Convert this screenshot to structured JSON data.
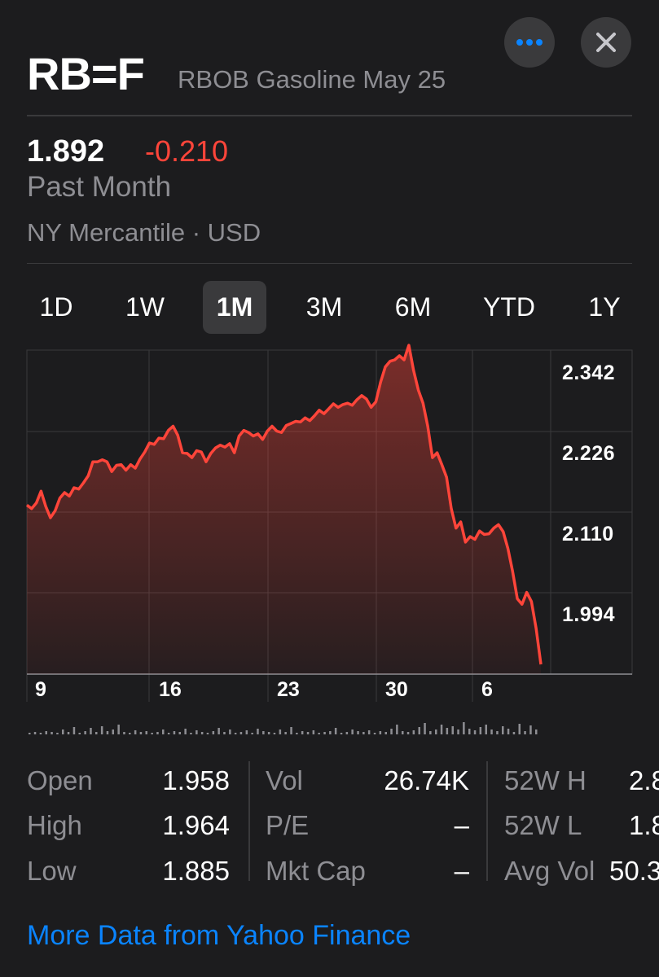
{
  "header": {
    "symbol": "RB=F",
    "name": "RBOB Gasoline May 25",
    "more_icon": "ellipsis-icon",
    "close_icon": "close-icon"
  },
  "quote": {
    "price": "1.892",
    "change": "-0.210",
    "period": "Past Month",
    "exchange": "NY Mercantile · USD"
  },
  "tabs": [
    {
      "label": "1D"
    },
    {
      "label": "1W"
    },
    {
      "label": "1M",
      "active": true
    },
    {
      "label": "3M"
    },
    {
      "label": "6M"
    },
    {
      "label": "YTD"
    },
    {
      "label": "1Y"
    }
  ],
  "chart_data": {
    "type": "area",
    "y_ticks": [
      "2.342",
      "2.226",
      "2.110",
      "1.994"
    ],
    "x_ticks": [
      "9",
      "16",
      "23",
      "30",
      "6"
    ],
    "ylim": [
      1.878,
      2.342
    ],
    "line_color": "#ff453a",
    "series": [
      {
        "values": [
          2.12,
          2.115,
          2.123,
          2.14,
          2.118,
          2.102,
          2.112,
          2.13,
          2.138,
          2.133,
          2.145,
          2.143,
          2.152,
          2.162,
          2.182,
          2.182,
          2.185,
          2.182,
          2.168,
          2.177,
          2.178,
          2.17,
          2.178,
          2.173,
          2.186,
          2.196,
          2.209,
          2.207,
          2.216,
          2.215,
          2.227,
          2.233,
          2.22,
          2.195,
          2.194,
          2.188,
          2.198,
          2.196,
          2.182,
          2.194,
          2.202,
          2.206,
          2.203,
          2.208,
          2.195,
          2.219,
          2.227,
          2.224,
          2.219,
          2.222,
          2.214,
          2.226,
          2.233,
          2.226,
          2.224,
          2.234,
          2.237,
          2.24,
          2.239,
          2.245,
          2.241,
          2.248,
          2.256,
          2.251,
          2.258,
          2.265,
          2.26,
          2.264,
          2.266,
          2.263,
          2.271,
          2.277,
          2.272,
          2.26,
          2.268,
          2.296,
          2.318,
          2.326,
          2.328,
          2.334,
          2.328,
          2.349,
          2.313,
          2.285,
          2.266,
          2.233,
          2.188,
          2.195,
          2.178,
          2.16,
          2.115,
          2.087,
          2.096,
          2.067,
          2.075,
          2.071,
          2.083,
          2.078,
          2.079,
          2.087,
          2.092,
          2.082,
          2.058,
          2.025,
          1.986,
          1.978,
          1.995,
          1.982,
          1.943,
          1.892
        ]
      }
    ]
  },
  "stats": {
    "col1": [
      {
        "label": "Open",
        "value": "1.958"
      },
      {
        "label": "High",
        "value": "1.964"
      },
      {
        "label": "Low",
        "value": "1.885"
      }
    ],
    "col2": [
      {
        "label": "Vol",
        "value": "26.74K"
      },
      {
        "label": "P/E",
        "value": "–"
      },
      {
        "label": "Mkt Cap",
        "value": "–"
      }
    ],
    "col3": [
      {
        "label": "52W H",
        "value": "2.8"
      },
      {
        "label": "52W L",
        "value": "1.8"
      },
      {
        "label": "Avg Vol",
        "value": "50.3"
      }
    ]
  },
  "footer": {
    "link": "More Data from Yahoo Finance"
  }
}
